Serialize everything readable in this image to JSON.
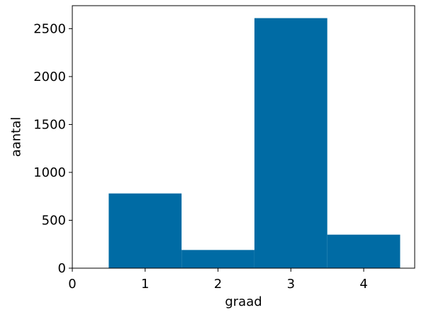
{
  "chart_data": {
    "type": "bar",
    "x": [
      1,
      2,
      3,
      4
    ],
    "values": [
      780,
      190,
      2610,
      350
    ],
    "bar_width": 1,
    "xlabel": "graad",
    "ylabel": "aantal",
    "xlim": [
      0,
      4.7
    ],
    "ylim": [
      0,
      2740
    ],
    "xticks": [
      0,
      1,
      2,
      3,
      4
    ],
    "yticks": [
      0,
      500,
      1000,
      1500,
      2000,
      2500
    ],
    "grid": false,
    "colors": {
      "bar": "#006BA4",
      "axis": "#000000"
    }
  }
}
